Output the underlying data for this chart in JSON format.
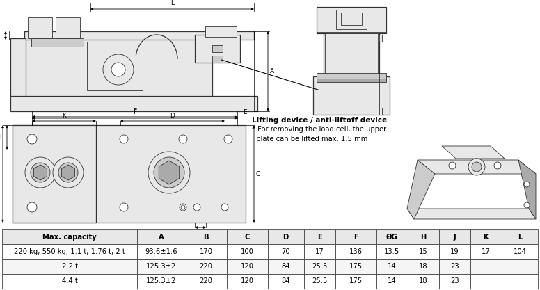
{
  "background_color": "#ffffff",
  "table_header": [
    "Max. capacity",
    "A",
    "B",
    "C",
    "D",
    "E",
    "F",
    "ØG",
    "H",
    "J",
    "K",
    "L"
  ],
  "table_rows": [
    [
      "220 kg; 550 kg; 1.1 t; 1.76 t; 2 t",
      "93.6±1.6",
      "170",
      "100",
      "70",
      "17",
      "136",
      "13.5",
      "15",
      "19",
      "17",
      "104"
    ],
    [
      "2.2 t",
      "125.3±2",
      "220",
      "120",
      "84",
      "25.5",
      "175",
      "14",
      "18",
      "23",
      "",
      ""
    ],
    [
      "4.4 t",
      "125.3±2",
      "220",
      "120",
      "84",
      "25.5",
      "175",
      "14",
      "18",
      "23",
      "",
      ""
    ]
  ],
  "annotation_bold": "Lifting device / anti-liftoff device",
  "annotation_normal": "* For removing the load cell, the upper\n  plate can be lifted max. 1.5 mm",
  "col_widths_rel": [
    2.8,
    1.0,
    0.85,
    0.85,
    0.75,
    0.65,
    0.85,
    0.65,
    0.65,
    0.65,
    0.65,
    0.75
  ],
  "table_font_size": 7.2,
  "header_bg": "#e8e8e8",
  "row_bg": [
    "#ffffff",
    "#f5f5f5",
    "#ffffff"
  ],
  "grid_color": "#444444",
  "line_color": "#333333",
  "fill_light": "#e8e8e8",
  "fill_mid": "#cccccc",
  "fill_dark": "#aaaaaa",
  "fill_white": "#ffffff"
}
